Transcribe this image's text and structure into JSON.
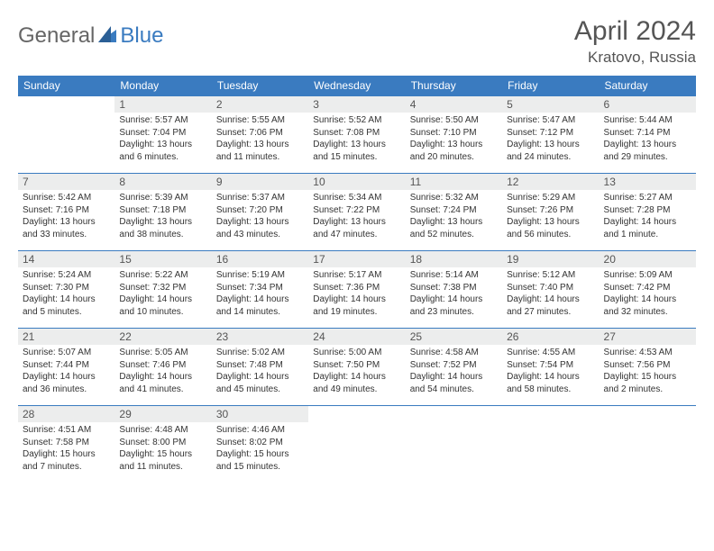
{
  "brand": {
    "part1": "General",
    "part2": "Blue"
  },
  "title": "April 2024",
  "location": "Kratovo, Russia",
  "colors": {
    "header_bg": "#3a7bc0",
    "header_text": "#ffffff",
    "daynum_bg": "#eceded",
    "border": "#3a7bc0",
    "text": "#333333",
    "logo_gray": "#666666",
    "logo_blue": "#3a7bc0",
    "page_bg": "#ffffff"
  },
  "weekdays": [
    "Sunday",
    "Monday",
    "Tuesday",
    "Wednesday",
    "Thursday",
    "Friday",
    "Saturday"
  ],
  "weeks": [
    [
      null,
      {
        "d": "1",
        "sr": "5:57 AM",
        "ss": "7:04 PM",
        "dl": "13 hours and 6 minutes."
      },
      {
        "d": "2",
        "sr": "5:55 AM",
        "ss": "7:06 PM",
        "dl": "13 hours and 11 minutes."
      },
      {
        "d": "3",
        "sr": "5:52 AM",
        "ss": "7:08 PM",
        "dl": "13 hours and 15 minutes."
      },
      {
        "d": "4",
        "sr": "5:50 AM",
        "ss": "7:10 PM",
        "dl": "13 hours and 20 minutes."
      },
      {
        "d": "5",
        "sr": "5:47 AM",
        "ss": "7:12 PM",
        "dl": "13 hours and 24 minutes."
      },
      {
        "d": "6",
        "sr": "5:44 AM",
        "ss": "7:14 PM",
        "dl": "13 hours and 29 minutes."
      }
    ],
    [
      {
        "d": "7",
        "sr": "5:42 AM",
        "ss": "7:16 PM",
        "dl": "13 hours and 33 minutes."
      },
      {
        "d": "8",
        "sr": "5:39 AM",
        "ss": "7:18 PM",
        "dl": "13 hours and 38 minutes."
      },
      {
        "d": "9",
        "sr": "5:37 AM",
        "ss": "7:20 PM",
        "dl": "13 hours and 43 minutes."
      },
      {
        "d": "10",
        "sr": "5:34 AM",
        "ss": "7:22 PM",
        "dl": "13 hours and 47 minutes."
      },
      {
        "d": "11",
        "sr": "5:32 AM",
        "ss": "7:24 PM",
        "dl": "13 hours and 52 minutes."
      },
      {
        "d": "12",
        "sr": "5:29 AM",
        "ss": "7:26 PM",
        "dl": "13 hours and 56 minutes."
      },
      {
        "d": "13",
        "sr": "5:27 AM",
        "ss": "7:28 PM",
        "dl": "14 hours and 1 minute."
      }
    ],
    [
      {
        "d": "14",
        "sr": "5:24 AM",
        "ss": "7:30 PM",
        "dl": "14 hours and 5 minutes."
      },
      {
        "d": "15",
        "sr": "5:22 AM",
        "ss": "7:32 PM",
        "dl": "14 hours and 10 minutes."
      },
      {
        "d": "16",
        "sr": "5:19 AM",
        "ss": "7:34 PM",
        "dl": "14 hours and 14 minutes."
      },
      {
        "d": "17",
        "sr": "5:17 AM",
        "ss": "7:36 PM",
        "dl": "14 hours and 19 minutes."
      },
      {
        "d": "18",
        "sr": "5:14 AM",
        "ss": "7:38 PM",
        "dl": "14 hours and 23 minutes."
      },
      {
        "d": "19",
        "sr": "5:12 AM",
        "ss": "7:40 PM",
        "dl": "14 hours and 27 minutes."
      },
      {
        "d": "20",
        "sr": "5:09 AM",
        "ss": "7:42 PM",
        "dl": "14 hours and 32 minutes."
      }
    ],
    [
      {
        "d": "21",
        "sr": "5:07 AM",
        "ss": "7:44 PM",
        "dl": "14 hours and 36 minutes."
      },
      {
        "d": "22",
        "sr": "5:05 AM",
        "ss": "7:46 PM",
        "dl": "14 hours and 41 minutes."
      },
      {
        "d": "23",
        "sr": "5:02 AM",
        "ss": "7:48 PM",
        "dl": "14 hours and 45 minutes."
      },
      {
        "d": "24",
        "sr": "5:00 AM",
        "ss": "7:50 PM",
        "dl": "14 hours and 49 minutes."
      },
      {
        "d": "25",
        "sr": "4:58 AM",
        "ss": "7:52 PM",
        "dl": "14 hours and 54 minutes."
      },
      {
        "d": "26",
        "sr": "4:55 AM",
        "ss": "7:54 PM",
        "dl": "14 hours and 58 minutes."
      },
      {
        "d": "27",
        "sr": "4:53 AM",
        "ss": "7:56 PM",
        "dl": "15 hours and 2 minutes."
      }
    ],
    [
      {
        "d": "28",
        "sr": "4:51 AM",
        "ss": "7:58 PM",
        "dl": "15 hours and 7 minutes."
      },
      {
        "d": "29",
        "sr": "4:48 AM",
        "ss": "8:00 PM",
        "dl": "15 hours and 11 minutes."
      },
      {
        "d": "30",
        "sr": "4:46 AM",
        "ss": "8:02 PM",
        "dl": "15 hours and 15 minutes."
      },
      null,
      null,
      null,
      null
    ]
  ],
  "labels": {
    "sunrise": "Sunrise: ",
    "sunset": "Sunset: ",
    "daylight": "Daylight: "
  }
}
